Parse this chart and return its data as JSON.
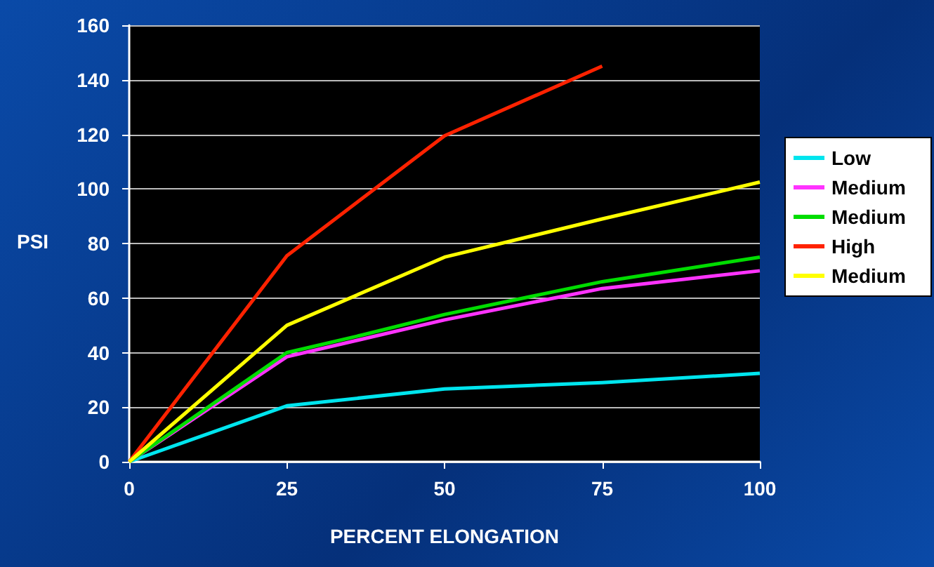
{
  "chart_data": {
    "type": "line",
    "xlabel": "PERCENT ELONGATION",
    "ylabel": "PSI",
    "xlim": [
      0,
      100
    ],
    "xticks": [
      0,
      25,
      50,
      75,
      100
    ],
    "ylim": [
      0,
      160
    ],
    "yticks": [
      0,
      20,
      40,
      60,
      80,
      100,
      120,
      140,
      160
    ],
    "grid": "y",
    "legend": "right",
    "marker": "none",
    "line_style": "solid",
    "series": [
      {
        "name": "Low",
        "color": "#00e5ee",
        "x": [
          0,
          25,
          50,
          75,
          100
        ],
        "values": [
          0,
          20.5,
          26.7,
          29,
          32.4
        ]
      },
      {
        "name": "Medium",
        "color": "#ff33ff",
        "x": [
          0,
          25,
          50,
          75,
          100
        ],
        "values": [
          0,
          38.5,
          52,
          63.5,
          70
        ]
      },
      {
        "name": "Medium",
        "color": "#00dd00",
        "x": [
          0,
          25,
          37,
          50,
          75,
          100
        ],
        "values": [
          0,
          40,
          46.5,
          54,
          66,
          75
        ]
      },
      {
        "name": "High",
        "color": "#ff2200",
        "x": [
          0,
          25,
          50,
          75
        ],
        "values": [
          0,
          75.5,
          119.5,
          145
        ]
      },
      {
        "name": "Medium",
        "color": "#ffff00",
        "x": [
          0,
          25,
          50,
          75,
          100
        ],
        "values": [
          0,
          50,
          75,
          89,
          102.5
        ]
      }
    ]
  }
}
